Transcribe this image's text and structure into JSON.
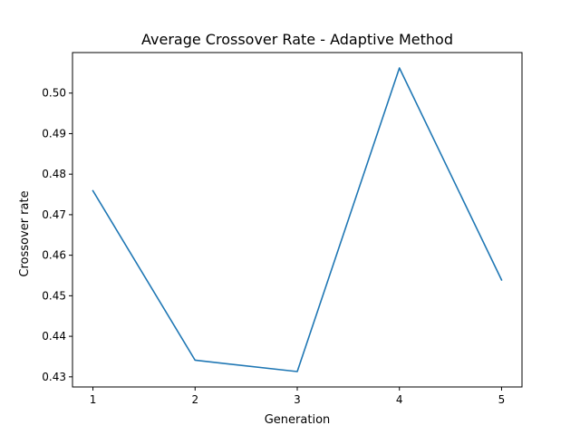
{
  "chart_data": {
    "type": "line",
    "title": "Average Crossover Rate - Adaptive Method",
    "xlabel": "Generation",
    "ylabel": "Crossover rate",
    "x": [
      1,
      2,
      3,
      4,
      5
    ],
    "series": [
      {
        "values": [
          0.4759,
          0.4341,
          0.4313,
          0.5062,
          0.4539
        ],
        "color": "#1f77b4"
      }
    ],
    "xticks": [
      1,
      2,
      3,
      4,
      5
    ],
    "xtick_labels": [
      "1",
      "2",
      "3",
      "4",
      "5"
    ],
    "yticks": [
      0.43,
      0.44,
      0.45,
      0.46,
      0.47,
      0.48,
      0.49,
      0.5
    ],
    "ytick_labels": [
      "0.43",
      "0.44",
      "0.45",
      "0.46",
      "0.47",
      "0.48",
      "0.49",
      "0.50"
    ],
    "xlim": [
      0.8,
      5.2
    ],
    "ylim": [
      0.4275,
      0.51
    ],
    "grid": false,
    "legend": false
  }
}
